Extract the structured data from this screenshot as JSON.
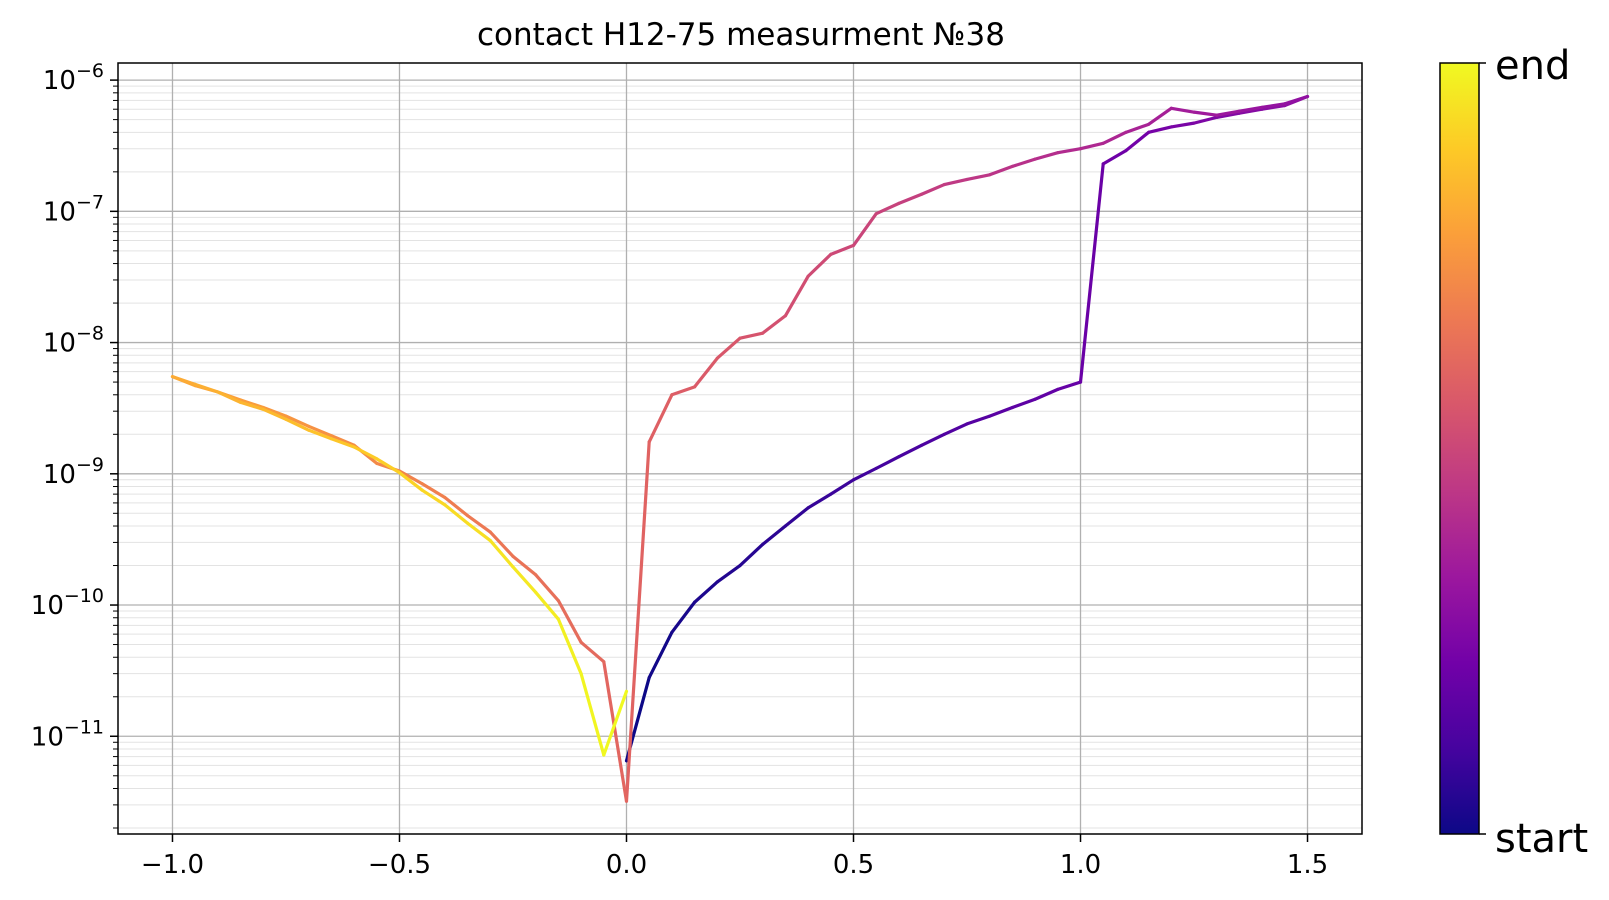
{
  "chart_data": {
    "type": "line",
    "title": "contact H12-75 measurment №38",
    "xlabel": "",
    "ylabel": "",
    "xlim": [
      -1.12,
      1.62
    ],
    "ylim": [
      1.8e-12,
      1.35e-06
    ],
    "yscale": "log",
    "grid": {
      "major": true,
      "minor_y": true
    },
    "x_ticks": [
      {
        "value": -1.0,
        "label": "−1.0"
      },
      {
        "value": -0.5,
        "label": "−0.5"
      },
      {
        "value": 0.0,
        "label": "0.0"
      },
      {
        "value": 0.5,
        "label": "0.5"
      },
      {
        "value": 1.0,
        "label": "1.0"
      },
      {
        "value": 1.5,
        "label": "1.5"
      }
    ],
    "y_ticks": [
      {
        "value": 1e-06,
        "base": "10",
        "exp": "−6"
      },
      {
        "value": 1e-07,
        "base": "10",
        "exp": "−7"
      },
      {
        "value": 1e-08,
        "base": "10",
        "exp": "−8"
      },
      {
        "value": 1e-09,
        "base": "10",
        "exp": "−9"
      },
      {
        "value": 1e-10,
        "base": "10",
        "exp": "−10"
      },
      {
        "value": 1e-11,
        "base": "10",
        "exp": "−11"
      }
    ],
    "colorbar": {
      "colormap": "plasma",
      "start_label": "start",
      "end_label": "end",
      "stops": [
        "#0d0887",
        "#46039f",
        "#7201a8",
        "#9c179e",
        "#bd3786",
        "#d8576b",
        "#ed7953",
        "#fb9f3a",
        "#fdca26",
        "#f0f921"
      ]
    },
    "sweep": {
      "x": [
        0.0,
        0.05,
        0.1,
        0.15,
        0.2,
        0.25,
        0.3,
        0.35,
        0.4,
        0.45,
        0.5,
        0.55,
        0.6,
        0.65,
        0.7,
        0.75,
        0.8,
        0.85,
        0.9,
        0.95,
        1.0,
        1.05,
        1.1,
        1.15,
        1.2,
        1.25,
        1.3,
        1.35,
        1.4,
        1.45,
        1.5,
        1.45,
        1.4,
        1.35,
        1.3,
        1.25,
        1.2,
        1.15,
        1.1,
        1.05,
        1.0,
        0.95,
        0.9,
        0.85,
        0.8,
        0.75,
        0.7,
        0.65,
        0.6,
        0.55,
        0.5,
        0.45,
        0.4,
        0.35,
        0.3,
        0.25,
        0.2,
        0.15,
        0.1,
        0.05,
        0.0,
        -0.05,
        -0.1,
        -0.15,
        -0.2,
        -0.25,
        -0.3,
        -0.35,
        -0.4,
        -0.45,
        -0.5,
        -0.55,
        -0.6,
        -0.65,
        -0.7,
        -0.75,
        -0.8,
        -0.85,
        -0.9,
        -0.95,
        -1.0,
        -0.95,
        -0.9,
        -0.85,
        -0.8,
        -0.75,
        -0.7,
        -0.65,
        -0.6,
        -0.55,
        -0.5,
        -0.45,
        -0.4,
        -0.35,
        -0.3,
        -0.25,
        -0.2,
        -0.15,
        -0.1,
        -0.05,
        0.0
      ],
      "y": [
        6.5e-12,
        2.8e-11,
        6.2e-11,
        1.05e-10,
        1.5e-10,
        2e-10,
        2.9e-10,
        4e-10,
        5.5e-10,
        7e-10,
        9e-10,
        1.1e-09,
        1.35e-09,
        1.65e-09,
        2e-09,
        2.4e-09,
        2.75e-09,
        3.2e-09,
        3.7e-09,
        4.4e-09,
        5e-09,
        2.3e-07,
        2.9e-07,
        4e-07,
        4.4e-07,
        4.7e-07,
        5.2e-07,
        5.6e-07,
        6e-07,
        6.4e-07,
        7.5e-07,
        6.6e-07,
        6.2e-07,
        5.8e-07,
        5.4e-07,
        5.7e-07,
        6.1e-07,
        4.6e-07,
        4e-07,
        3.3e-07,
        3e-07,
        2.8e-07,
        2.5e-07,
        2.2e-07,
        1.9e-07,
        1.75e-07,
        1.6e-07,
        1.35e-07,
        1.15e-07,
        9.6e-08,
        5.5e-08,
        4.7e-08,
        3.2e-08,
        1.6e-08,
        1.18e-08,
        1.08e-08,
        7.6e-09,
        4.6e-09,
        4e-09,
        1.75e-09,
        3.2e-12,
        3.7e-11,
        5.2e-11,
        1.08e-10,
        1.7e-10,
        2.35e-10,
        3.6e-10,
        4.8e-10,
        6.6e-10,
        8.4e-10,
        1.05e-09,
        1.2e-09,
        1.65e-09,
        1.95e-09,
        2.3e-09,
        2.75e-09,
        3.2e-09,
        3.65e-09,
        4.2e-09,
        4.7e-09,
        5.5e-09,
        4.8e-09,
        4.2e-09,
        3.5e-09,
        3.1e-09,
        2.6e-09,
        2.15e-09,
        1.85e-09,
        1.6e-09,
        1.3e-09,
        1.02e-09,
        7.5e-10,
        5.8e-10,
        4.2e-10,
        3.1e-10,
        1.95e-10,
        1.25e-10,
        7.8e-11,
        3e-11,
        7.2e-12,
        2.2e-11
      ]
    }
  }
}
